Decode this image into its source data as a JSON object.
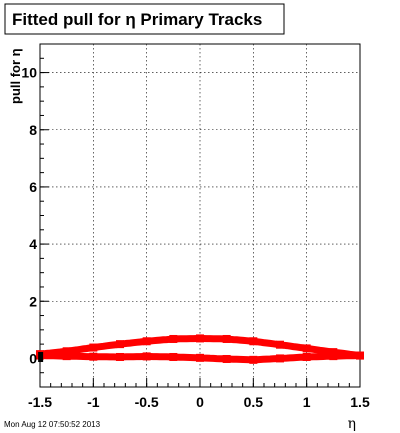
{
  "chart_data": {
    "type": "line",
    "title": "Fitted pull for η  Primary Tracks",
    "xlabel": "η",
    "ylabel": "pull for η",
    "xlim": [
      -1.5,
      1.5
    ],
    "ylim": [
      -1,
      11
    ],
    "x_ticks": [
      -1.5,
      -1,
      -0.5,
      0,
      0.5,
      1,
      1.5
    ],
    "x_tick_labels": [
      "-1.5",
      "-1",
      "-0.5",
      "0",
      "0.5",
      "1",
      "1.5"
    ],
    "y_ticks": [
      0,
      2,
      4,
      6,
      8,
      10
    ],
    "y_tick_labels": [
      "0",
      "2",
      "4",
      "6",
      "8",
      "10"
    ],
    "grid": true,
    "series": [
      {
        "color": "#ff0000",
        "x": [
          -1.5,
          -1.25,
          -1.0,
          -0.75,
          -0.5,
          -0.25,
          0.0,
          0.25,
          0.5,
          0.75,
          1.0,
          1.25,
          1.5
        ],
        "values": [
          0.15,
          0.25,
          0.38,
          0.5,
          0.6,
          0.68,
          0.7,
          0.68,
          0.6,
          0.48,
          0.35,
          0.22,
          0.1
        ]
      },
      {
        "color": "#ff0000",
        "x": [
          -1.5,
          -1.25,
          -1.0,
          -0.75,
          -0.5,
          -0.25,
          0.0,
          0.25,
          0.5,
          0.75,
          1.0,
          1.25,
          1.5
        ],
        "values": [
          0.1,
          0.08,
          0.06,
          0.05,
          0.07,
          0.05,
          0.02,
          -0.02,
          -0.05,
          0.0,
          0.05,
          0.08,
          0.1
        ]
      }
    ],
    "marker_black": {
      "x": -1.48,
      "y": 0.05
    }
  },
  "footer": {
    "timestamp": "Mon Aug 12 07:50:52 2013"
  }
}
